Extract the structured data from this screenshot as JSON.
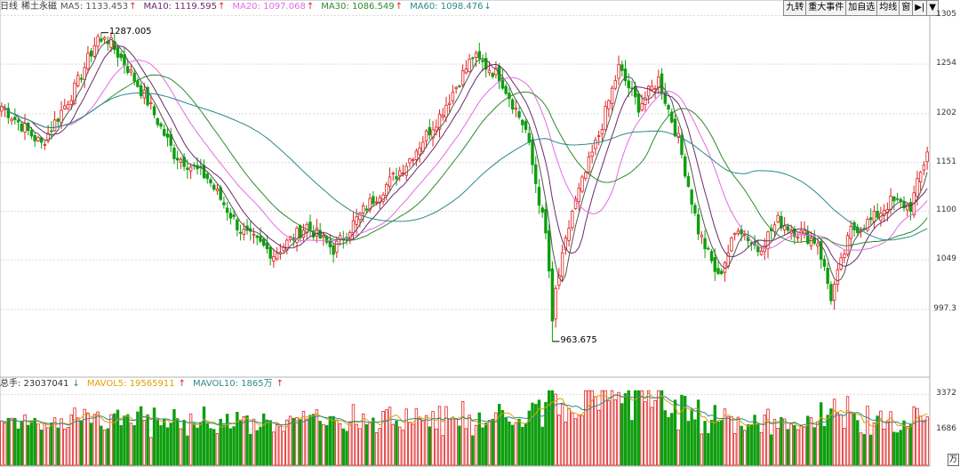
{
  "header": {
    "period": "日线",
    "name": "稀土永磁",
    "ma": [
      {
        "label": "MA5: 1133.453",
        "arrow": "↑",
        "color": "#555555"
      },
      {
        "label": "MA10: 1119.595",
        "arrow": "↑",
        "color": "#6b2a6b"
      },
      {
        "label": "MA20: 1097.068",
        "arrow": "↑",
        "color": "#e36be3"
      },
      {
        "label": "MA30: 1086.549",
        "arrow": "↑",
        "color": "#2e8b2e"
      },
      {
        "label": "MA60: 1098.476",
        "arrow": "↓",
        "color": "#2a8a8a"
      }
    ]
  },
  "toolbar": {
    "buttons": [
      "九转",
      "重大事件",
      "加自选",
      "均线",
      "窗"
    ],
    "icon_names": [
      "fullscreen-icon",
      "dropdown-icon"
    ]
  },
  "volume_header": {
    "total": "总手: 23037041",
    "total_arrow": "↓",
    "mavol5": "MAVOL5: 19565911",
    "mavol5_arrow": "↑",
    "mavol10": "MAVOL10: 1865万",
    "mavol10_arrow": "↑"
  },
  "axis_unit": "万",
  "annotations": {
    "high": "1287.005",
    "low": "963.675"
  },
  "colors": {
    "up": "#e21f1f",
    "down": "#0f9e0f",
    "grid": "#d8d8d8",
    "ma5": "#555555",
    "ma10": "#6b2a6b",
    "ma20": "#e36be3",
    "ma30": "#2e8b2e",
    "ma60": "#2a8a8a"
  },
  "chart_data": {
    "type": "candlestick",
    "price_axis": {
      "ticks": [
        "1305",
        "1254",
        "1202",
        "1151",
        "1100",
        "1049",
        "997.3"
      ],
      "range": [
        930,
        1310
      ]
    },
    "volume_axis": {
      "ticks": [
        "3372",
        "1686"
      ],
      "range": [
        0,
        3600
      ]
    },
    "price_anchors": [
      {
        "i": 0,
        "p": 1210
      },
      {
        "i": 12,
        "p": 1170
      },
      {
        "i": 22,
        "p": 1228
      },
      {
        "i": 30,
        "p": 1290
      },
      {
        "i": 38,
        "p": 1250
      },
      {
        "i": 44,
        "p": 1215
      },
      {
        "i": 52,
        "p": 1160
      },
      {
        "i": 62,
        "p": 1135
      },
      {
        "i": 72,
        "p": 1080
      },
      {
        "i": 82,
        "p": 1055
      },
      {
        "i": 92,
        "p": 1085
      },
      {
        "i": 100,
        "p": 1060
      },
      {
        "i": 110,
        "p": 1105
      },
      {
        "i": 122,
        "p": 1150
      },
      {
        "i": 132,
        "p": 1200
      },
      {
        "i": 142,
        "p": 1262
      },
      {
        "i": 150,
        "p": 1242
      },
      {
        "i": 158,
        "p": 1185
      },
      {
        "i": 164,
        "p": 1075
      },
      {
        "i": 166,
        "p": 1000
      },
      {
        "i": 172,
        "p": 1100
      },
      {
        "i": 180,
        "p": 1180
      },
      {
        "i": 186,
        "p": 1250
      },
      {
        "i": 192,
        "p": 1210
      },
      {
        "i": 198,
        "p": 1238
      },
      {
        "i": 204,
        "p": 1175
      },
      {
        "i": 210,
        "p": 1080
      },
      {
        "i": 216,
        "p": 1030
      },
      {
        "i": 222,
        "p": 1085
      },
      {
        "i": 228,
        "p": 1060
      },
      {
        "i": 234,
        "p": 1090
      },
      {
        "i": 240,
        "p": 1078
      },
      {
        "i": 246,
        "p": 1068
      },
      {
        "i": 250,
        "p": 1010
      },
      {
        "i": 256,
        "p": 1080
      },
      {
        "i": 262,
        "p": 1090
      },
      {
        "i": 268,
        "p": 1110
      },
      {
        "i": 274,
        "p": 1105
      },
      {
        "i": 279,
        "p": 1162
      }
    ],
    "candle_count": 280,
    "high_point": {
      "index": 30,
      "value": 1287.005
    },
    "low_point": {
      "index": 166,
      "value": 963.675
    },
    "last_volume": 2303.7
  }
}
